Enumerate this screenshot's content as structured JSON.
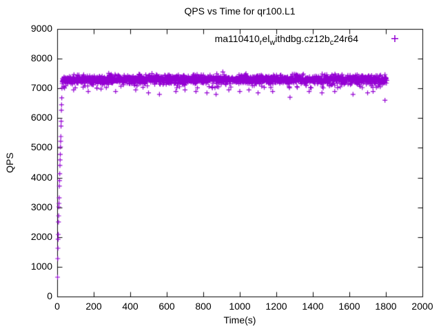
{
  "chart_data": {
    "type": "scatter",
    "title": "QPS vs Time for qr100.L1",
    "xlabel": "Time(s)",
    "ylabel": "QPS",
    "xlim": [
      0,
      2000
    ],
    "ylim": [
      0,
      9000
    ],
    "x_ticks": [
      0,
      200,
      400,
      600,
      800,
      1000,
      1200,
      1400,
      1600,
      1800,
      2000
    ],
    "y_ticks": [
      0,
      1000,
      2000,
      3000,
      4000,
      5000,
      6000,
      7000,
      8000,
      9000
    ],
    "grid": false,
    "legend_position": "top-right-inside",
    "axis_color": "#000000",
    "background_color": "#ffffff",
    "series": [
      {
        "name": "ma110410_rel_withdbg.cz12b_c24r64",
        "name_display_parts": [
          {
            "text": "ma110410"
          },
          {
            "text": "r",
            "sub": true
          },
          {
            "text": "el"
          },
          {
            "text": "w",
            "sub": true
          },
          {
            "text": "ithdbg.cz12b"
          },
          {
            "text": "c",
            "sub": true
          },
          {
            "text": "24r64"
          }
        ],
        "marker": "plus",
        "color": "#9400D3",
        "ramp_points": [
          [
            2,
            650
          ],
          [
            3,
            1276
          ],
          [
            4,
            1624
          ],
          [
            5,
            1926
          ],
          [
            6,
            2088
          ],
          [
            7,
            2506
          ],
          [
            8,
            2714
          ],
          [
            9,
            3016
          ],
          [
            10,
            3132
          ],
          [
            11,
            3318
          ],
          [
            12,
            3712
          ],
          [
            13,
            3898
          ],
          [
            14,
            4130
          ],
          [
            15,
            4408
          ],
          [
            16,
            4594
          ],
          [
            17,
            4779
          ],
          [
            18,
            5034
          ],
          [
            19,
            5220
          ],
          [
            20,
            5382
          ],
          [
            21,
            5730
          ],
          [
            22,
            5893
          ],
          [
            23,
            6264
          ],
          [
            24,
            6450
          ],
          [
            25,
            6682
          ],
          [
            26,
            7006
          ],
          [
            27,
            7168
          ],
          [
            28,
            7250
          ]
        ],
        "steady_state": {
          "t_start": 29,
          "t_end": 1805,
          "step": 1,
          "mean": 7300,
          "stddev": 75,
          "low_tail_prob": 0.05,
          "low_tail_min": 7000,
          "low_tail_span": 250,
          "clip_min": 6950,
          "clip_max": 7560
        },
        "dips": [
          [
            90,
            6950
          ],
          [
            170,
            6900
          ],
          [
            240,
            6980
          ],
          [
            320,
            6900
          ],
          [
            430,
            6950
          ],
          [
            500,
            6850
          ],
          [
            560,
            6800
          ],
          [
            650,
            6900
          ],
          [
            700,
            6950
          ],
          [
            760,
            6900
          ],
          [
            820,
            6850
          ],
          [
            870,
            6800
          ],
          [
            940,
            6950
          ],
          [
            1000,
            6900
          ],
          [
            1050,
            6950
          ],
          [
            1100,
            6850
          ],
          [
            1180,
            6900
          ],
          [
            1275,
            6700
          ],
          [
            1380,
            6900
          ],
          [
            1450,
            6850
          ],
          [
            1520,
            6900
          ],
          [
            1620,
            6800
          ],
          [
            1700,
            6850
          ],
          [
            1730,
            6900
          ],
          [
            1795,
            6600
          ]
        ]
      }
    ]
  }
}
